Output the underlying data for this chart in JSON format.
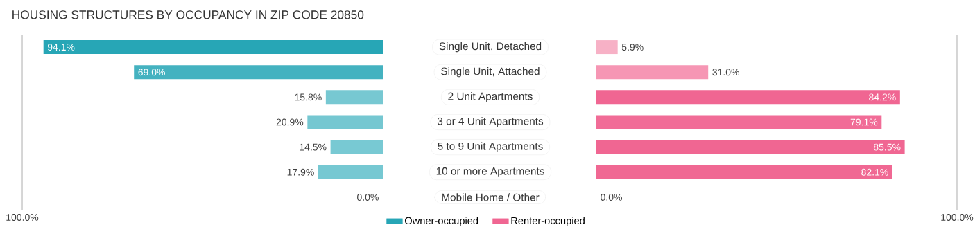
{
  "chart_data": [
    {
      "type": "bar",
      "orientation": "horizontal",
      "title": "HOUSING STRUCTURES BY OCCUPANCY IN ZIP CODE 20850",
      "categories": [
        "Single Unit, Detached",
        "Single Unit, Attached",
        "2 Unit Apartments",
        "3 or 4 Unit Apartments",
        "5 to 9 Unit Apartments",
        "10 or more Apartments",
        "Mobile Home / Other"
      ],
      "series": [
        {
          "name": "Owner-occupied",
          "color": "#27a6b6",
          "colors": [
            "#27a6b6",
            "#44b2c0",
            "#77c8d2",
            "#75c7d1",
            "#78c9d3",
            "#76c8d2",
            "#8ad0d9"
          ],
          "values": [
            94.1,
            69.0,
            15.8,
            20.9,
            14.5,
            17.9,
            0.0
          ],
          "value_labels": [
            "94.1%",
            "69.0%",
            "15.8%",
            "20.9%",
            "14.5%",
            "17.9%",
            "0.0%"
          ]
        }
      ],
      "xlim": [
        100,
        0
      ],
      "xticks": [
        {
          "value": 100,
          "label": "100.0%"
        }
      ],
      "ref_lines": [
        {
          "axis": "x",
          "value": 100
        }
      ],
      "legend": "bottom"
    },
    {
      "type": "bar",
      "orientation": "horizontal",
      "categories": [
        null,
        null,
        null,
        null,
        null,
        null,
        null
      ],
      "series": [
        {
          "name": "Renter-occupied",
          "color": "#f06692",
          "colors": [
            "#f7b1c6",
            "#f696b4",
            "#f06692",
            "#f16c97",
            "#f06692",
            "#f06893",
            "#f7b1c6"
          ],
          "values": [
            5.9,
            31.0,
            84.2,
            79.1,
            85.5,
            82.1,
            0.0
          ],
          "value_labels": [
            "5.9%",
            "31.0%",
            "84.2%",
            "79.1%",
            "85.5%",
            "82.1%",
            "0.0%"
          ]
        }
      ],
      "xlim": [
        0,
        100
      ],
      "xticks": [
        {
          "value": 100,
          "label": "100.0%"
        }
      ],
      "ref_lines": [
        {
          "axis": "x",
          "value": 100
        }
      ],
      "legend": "bottom",
      "tick_labels": "x"
    }
  ]
}
